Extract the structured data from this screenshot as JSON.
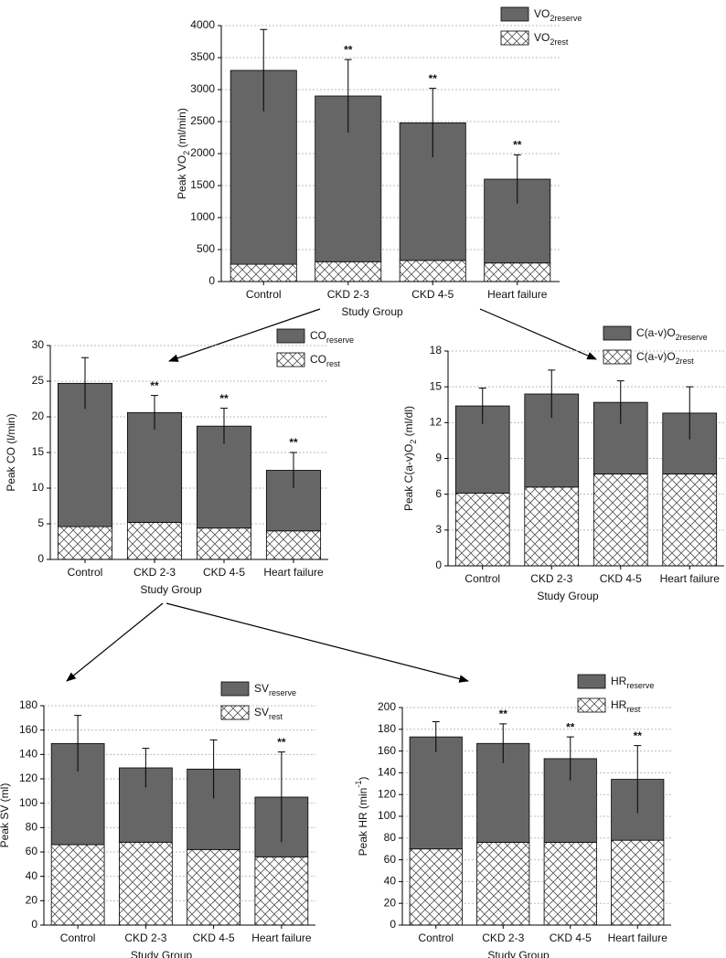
{
  "chart_data": [
    {
      "type": "bar",
      "stacked": true,
      "grid": true,
      "ylabel": [
        {
          "t": "Peak VO"
        },
        {
          "sub": "2"
        },
        {
          "t": " (ml/min)"
        }
      ],
      "xlabel": "Study Group",
      "categories": [
        "Control",
        "CKD 2-3",
        "CKD 4-5",
        "Heart failure"
      ],
      "ylim": [
        0,
        4000
      ],
      "yticks": [
        0,
        500,
        1000,
        1500,
        2000,
        2500,
        3000,
        3500,
        4000
      ],
      "series": [
        {
          "name": [
            {
              "t": "VO"
            },
            {
              "sub": "2rest"
            }
          ],
          "color": "#ffffff",
          "hatch": true,
          "values": [
            270,
            310,
            330,
            290
          ]
        },
        {
          "name": [
            {
              "t": "VO"
            },
            {
              "sub": "2reserve"
            }
          ],
          "color": "#666666",
          "values": [
            3030,
            2590,
            2150,
            1310
          ],
          "errors": [
            640,
            570,
            540,
            380
          ]
        }
      ],
      "annotations": [
        {
          "category": "CKD 2-3",
          "text": "**"
        },
        {
          "category": "CKD 4-5",
          "text": "**"
        },
        {
          "category": "Heart failure",
          "text": "**"
        }
      ]
    },
    {
      "type": "bar",
      "stacked": true,
      "grid": true,
      "ylabel": [
        {
          "t": "Peak CO (l/min)"
        }
      ],
      "xlabel": "Study Group",
      "categories": [
        "Control",
        "CKD 2-3",
        "CKD 4-5",
        "Heart failure"
      ],
      "ylim": [
        0,
        30
      ],
      "yticks": [
        0,
        5,
        10,
        15,
        20,
        25,
        30
      ],
      "series": [
        {
          "name": [
            {
              "t": "CO"
            },
            {
              "sub": "rest"
            }
          ],
          "color": "#ffffff",
          "hatch": true,
          "values": [
            4.6,
            5.2,
            4.4,
            4.0
          ]
        },
        {
          "name": [
            {
              "t": "CO"
            },
            {
              "sub": "reserve"
            }
          ],
          "color": "#666666",
          "values": [
            20.1,
            15.4,
            14.3,
            8.5
          ],
          "errors": [
            3.6,
            2.4,
            2.5,
            2.5
          ]
        }
      ],
      "annotations": [
        {
          "category": "CKD 2-3",
          "text": "**"
        },
        {
          "category": "CKD 4-5",
          "text": "**"
        },
        {
          "category": "Heart failure",
          "text": "**"
        }
      ]
    },
    {
      "type": "bar",
      "stacked": true,
      "grid": true,
      "ylabel": [
        {
          "t": "Peak C(a-v)O"
        },
        {
          "sub": "2"
        },
        {
          "t": " (ml/dl)"
        }
      ],
      "xlabel": "Study Group",
      "categories": [
        "Control",
        "CKD 2-3",
        "CKD 4-5",
        "Heart failure"
      ],
      "ylim": [
        0,
        18
      ],
      "yticks": [
        0,
        3,
        6,
        9,
        12,
        15,
        18
      ],
      "series": [
        {
          "name": [
            {
              "t": "C(a-v)O"
            },
            {
              "sub": "2rest"
            }
          ],
          "color": "#ffffff",
          "hatch": true,
          "values": [
            6.1,
            6.6,
            7.7,
            7.7
          ]
        },
        {
          "name": [
            {
              "t": "C(a-v)O"
            },
            {
              "sub": "2reserve"
            }
          ],
          "color": "#666666",
          "values": [
            7.3,
            7.8,
            6.0,
            5.1
          ],
          "errors": [
            1.5,
            2.0,
            1.8,
            2.2
          ]
        }
      ],
      "annotations": []
    },
    {
      "type": "bar",
      "stacked": true,
      "grid": true,
      "ylabel": [
        {
          "t": "Peak SV (ml)"
        }
      ],
      "xlabel": "Study Group",
      "categories": [
        "Control",
        "CKD 2-3",
        "CKD 4-5",
        "Heart failure"
      ],
      "ylim": [
        0,
        180
      ],
      "yticks": [
        0,
        20,
        40,
        60,
        80,
        100,
        120,
        140,
        160,
        180
      ],
      "series": [
        {
          "name": [
            {
              "t": "SV"
            },
            {
              "sub": "rest"
            }
          ],
          "color": "#ffffff",
          "hatch": true,
          "values": [
            66,
            68,
            62,
            56
          ]
        },
        {
          "name": [
            {
              "t": "SV"
            },
            {
              "sub": "reserve"
            }
          ],
          "color": "#666666",
          "values": [
            83,
            61,
            66,
            49
          ],
          "errors": [
            23,
            16,
            24,
            37
          ]
        }
      ],
      "annotations": [
        {
          "category": "Heart failure",
          "text": "**"
        }
      ]
    },
    {
      "type": "bar",
      "stacked": true,
      "grid": true,
      "ylabel": [
        {
          "t": "Peak HR (min"
        },
        {
          "sup": "-1"
        },
        {
          "t": ")"
        }
      ],
      "xlabel": "Study Group",
      "categories": [
        "Control",
        "CKD 2-3",
        "CKD 4-5",
        "Heart failure"
      ],
      "ylim": [
        0,
        200
      ],
      "yticks": [
        0,
        20,
        40,
        60,
        80,
        100,
        120,
        140,
        160,
        180,
        200
      ],
      "series": [
        {
          "name": [
            {
              "t": "HR"
            },
            {
              "sub": "rest"
            }
          ],
          "color": "#ffffff",
          "hatch": true,
          "values": [
            70,
            76,
            76,
            78
          ]
        },
        {
          "name": [
            {
              "t": "HR"
            },
            {
              "sub": "reserve"
            }
          ],
          "color": "#666666",
          "values": [
            103,
            91,
            77,
            56
          ],
          "errors": [
            14,
            18,
            20,
            31
          ]
        }
      ],
      "annotations": [
        {
          "category": "CKD 2-3",
          "text": "**"
        },
        {
          "category": "CKD 4-5",
          "text": "**"
        },
        {
          "category": "Heart failure",
          "text": "**"
        }
      ]
    }
  ]
}
